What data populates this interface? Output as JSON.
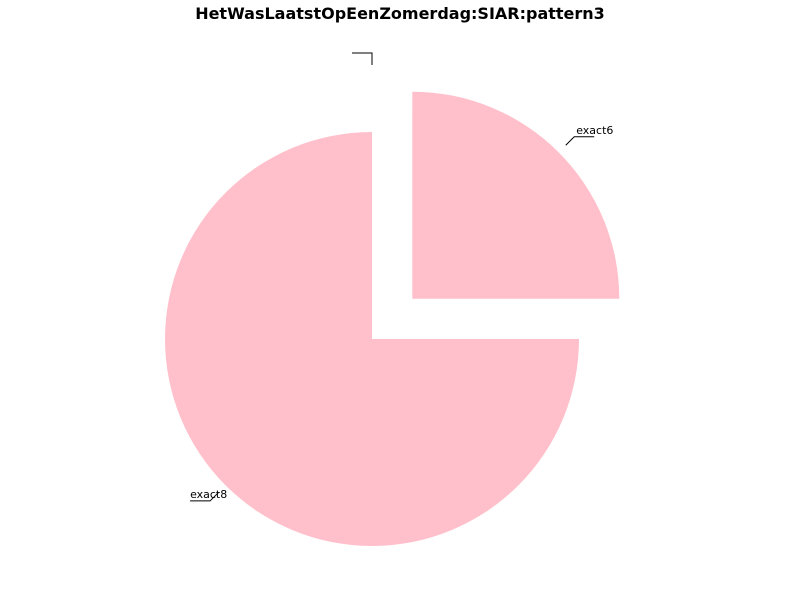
{
  "chart_data": {
    "type": "pie",
    "title": "HetWasLaatstOpEenZomerdag:SIAR:pattern3",
    "slices": [
      {
        "label": "exact6",
        "value": 25,
        "color": "#ffc0cb",
        "exploded": true
      },
      {
        "label": "exact8",
        "value": 75,
        "color": "#ffc0cb",
        "exploded": false
      },
      {
        "label": "",
        "value": 0,
        "color": "#ffc0cb",
        "exploded": true
      },
      {
        "label": "",
        "value": 0,
        "color": "#ffc0cb",
        "exploded": true
      }
    ],
    "legend": "none"
  }
}
